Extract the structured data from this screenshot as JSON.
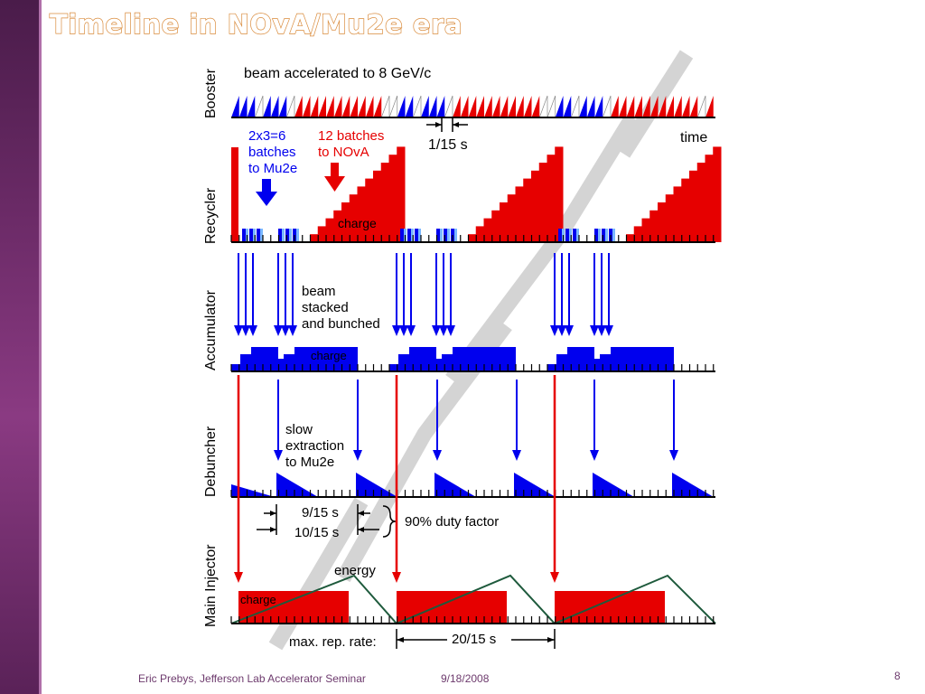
{
  "slide": {
    "title": "Timeline in NOvA/Mu2e era",
    "footer_left": "Eric Prebys, Jefferson Lab Accelerator Seminar",
    "footer_date": "9/18/2008",
    "page_number": "8"
  },
  "diagram": {
    "lanes": {
      "booster": "Booster",
      "recycler": "Recycler",
      "accumulator": "Accumulator",
      "debuncher": "Debuncher",
      "main_injector": "Main Injector"
    },
    "labels": {
      "beam_accel": "beam accelerated to 8 GeV/c",
      "period": "1/15 s",
      "time": "time",
      "mu2e_batches_1": "2x3=6",
      "mu2e_batches_2": "batches",
      "mu2e_batches_3": "to Mu2e",
      "nova_batches_1": "12 batches",
      "nova_batches_2": "to NOvA",
      "charge_recycler": "charge",
      "stack_1": "beam",
      "stack_2": "stacked",
      "stack_3": "and bunched",
      "charge_accumulator": "charge",
      "slow_1": "slow",
      "slow_2": "extraction",
      "slow_3": "to Mu2e",
      "spill_9": "9/15 s",
      "spill_10": "10/15 s",
      "duty": "90% duty factor",
      "energy": "energy",
      "charge_mi": "charge",
      "max_rep": "max. rep. rate:",
      "rep_period": "20/15 s"
    },
    "colors": {
      "nova": "#e60000",
      "mu2e": "#0000ee",
      "energy_line": "#1e5a3c",
      "watermark": "#cfcfcf"
    }
  }
}
